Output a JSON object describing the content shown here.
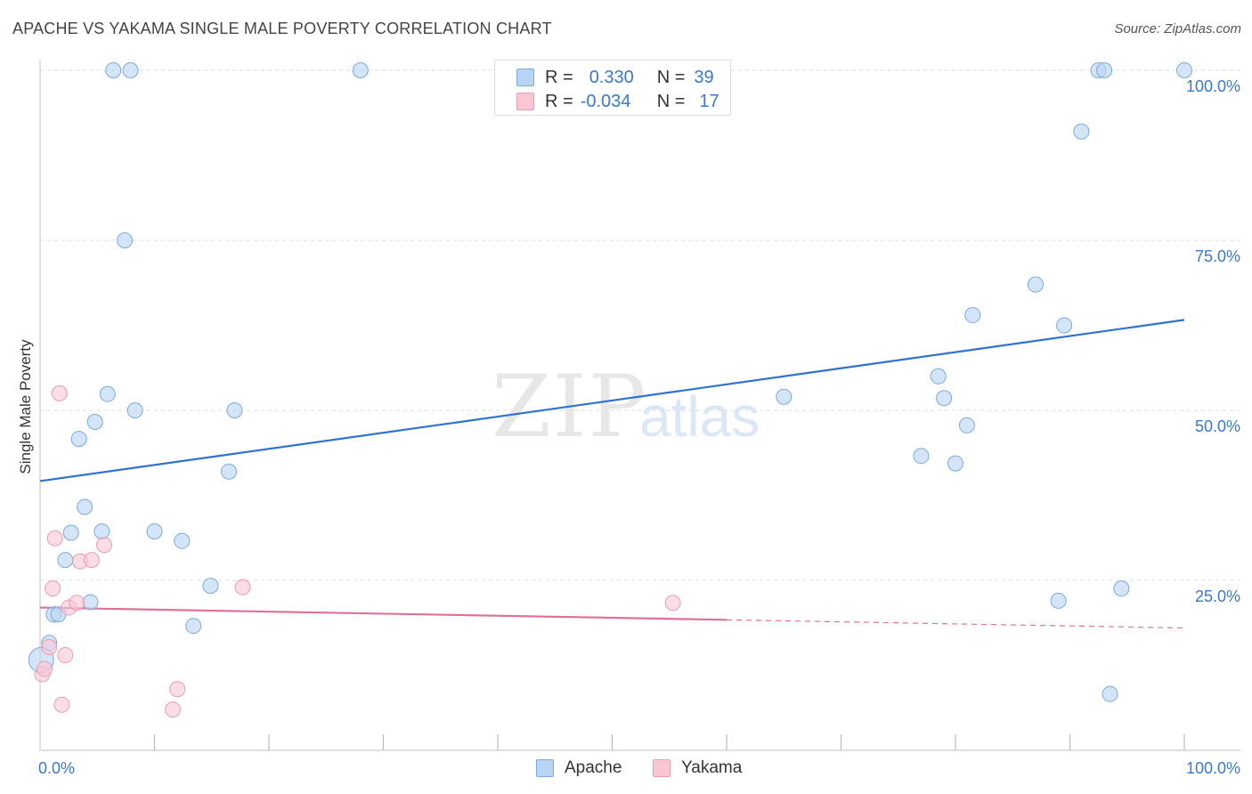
{
  "title": "APACHE VS YAKAMA SINGLE MALE POVERTY CORRELATION CHART",
  "source": "Source: ZipAtlas.com",
  "watermark": {
    "zip": "ZIP",
    "atlas": "atlas"
  },
  "legend": {
    "apache": {
      "r_label": "R =",
      "r_value": "0.330",
      "n_label": "N =",
      "n_value": "39"
    },
    "yakama": {
      "r_label": "R =",
      "r_value": "-0.034",
      "n_label": "N =",
      "n_value": "17"
    }
  },
  "colors": {
    "apache_fill": "#b8d4f4",
    "apache_stroke": "#7aaae0",
    "apache_line": "#2f72d0",
    "yakama_fill": "#f9c6d4",
    "yakama_stroke": "#ee9ab2",
    "yakama_line": "#e0709a",
    "tick_text": "#3a78d0"
  },
  "chart_data": {
    "type": "scatter",
    "title": "APACHE VS YAKAMA SINGLE MALE POVERTY CORRELATION CHART",
    "xlabel": "",
    "ylabel": "Single Male Poverty",
    "xlim": [
      0,
      100
    ],
    "ylim": [
      0,
      100
    ],
    "x_tick_labels": [
      "0.0%",
      "100.0%"
    ],
    "y_ticks": [
      {
        "value": 25,
        "label": "25.0%"
      },
      {
        "value": 50,
        "label": "50.0%"
      },
      {
        "value": 75,
        "label": "75.0%"
      },
      {
        "value": 100,
        "label": "100.0%"
      }
    ],
    "series": [
      {
        "name": "Apache",
        "points": [
          [
            0.1,
            13.3
          ],
          [
            0.8,
            15.8
          ],
          [
            1.2,
            20.0
          ],
          [
            1.6,
            20.0
          ],
          [
            2.2,
            28.0
          ],
          [
            2.7,
            32.0
          ],
          [
            3.4,
            45.8
          ],
          [
            3.9,
            35.8
          ],
          [
            4.4,
            21.8
          ],
          [
            4.8,
            48.3
          ],
          [
            5.4,
            32.2
          ],
          [
            5.9,
            52.4
          ],
          [
            6.4,
            100.0
          ],
          [
            7.4,
            75.0
          ],
          [
            7.9,
            100.0
          ],
          [
            8.3,
            50.0
          ],
          [
            10.0,
            32.2
          ],
          [
            12.4,
            30.8
          ],
          [
            13.4,
            18.3
          ],
          [
            14.9,
            24.2
          ],
          [
            16.5,
            41.0
          ],
          [
            17.0,
            50.0
          ],
          [
            28.0,
            100.0
          ],
          [
            65.0,
            52.0
          ],
          [
            77.0,
            43.3
          ],
          [
            78.5,
            55.0
          ],
          [
            79.0,
            51.8
          ],
          [
            80.0,
            42.2
          ],
          [
            81.0,
            47.8
          ],
          [
            81.5,
            64.0
          ],
          [
            87.0,
            68.5
          ],
          [
            89.0,
            22.0
          ],
          [
            89.5,
            62.5
          ],
          [
            91.0,
            91.0
          ],
          [
            92.5,
            100.0
          ],
          [
            93.0,
            100.0
          ],
          [
            93.5,
            8.3
          ],
          [
            94.5,
            23.8
          ],
          [
            100.0,
            100.0
          ]
        ],
        "trend": {
          "x": [
            0,
            100
          ],
          "y": [
            39.6,
            63.3
          ]
        }
      },
      {
        "name": "Yakama",
        "points": [
          [
            0.2,
            11.2
          ],
          [
            0.4,
            12.0
          ],
          [
            0.8,
            15.2
          ],
          [
            1.1,
            23.8
          ],
          [
            1.3,
            31.2
          ],
          [
            1.7,
            52.5
          ],
          [
            1.9,
            6.7
          ],
          [
            2.2,
            14.0
          ],
          [
            2.5,
            21.0
          ],
          [
            3.2,
            21.7
          ],
          [
            3.5,
            27.8
          ],
          [
            4.5,
            28.0
          ],
          [
            5.6,
            30.2
          ],
          [
            11.6,
            6.0
          ],
          [
            12.0,
            9.0
          ],
          [
            17.7,
            24.0
          ],
          [
            55.3,
            21.7
          ]
        ],
        "trend": {
          "x": [
            0,
            100
          ],
          "y": [
            21.0,
            18.0
          ],
          "solid_until_x": 60
        }
      }
    ]
  }
}
